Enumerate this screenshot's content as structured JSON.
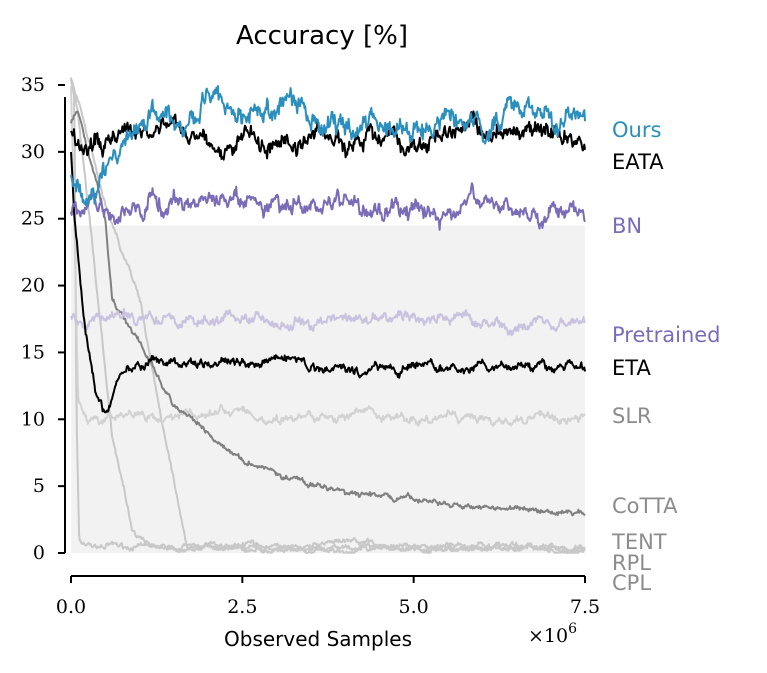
{
  "chart_data": {
    "type": "line",
    "title": "Accuracy [%]",
    "xlabel": "Observed Samples",
    "ylabel": "",
    "x_multiplier": "×10",
    "x_multiplier_exp": "6",
    "xlim": [
      0,
      7.5
    ],
    "ylim": [
      0,
      35
    ],
    "x_ticks": [
      0.0,
      2.5,
      5.0,
      7.5
    ],
    "x_tick_labels": [
      "0.0",
      "2.5",
      "5.0",
      "7.5"
    ],
    "y_ticks": [
      0,
      5,
      10,
      15,
      20,
      25,
      30,
      35
    ],
    "y_tick_labels": [
      "0",
      "5",
      "10",
      "15",
      "20",
      "25",
      "30",
      "35"
    ],
    "grid": false,
    "legend_placement": "right, labels next to line ends",
    "band": {
      "from": 0,
      "to": 24.5,
      "color": "#f2f2f2"
    },
    "series": [
      {
        "name": "CPL",
        "color": "#c8c8c8",
        "x": [
          0,
          0.05,
          0.08,
          0.12,
          0.5,
          7.5
        ],
        "y": [
          35.5,
          34,
          10,
          0.8,
          0.4,
          0.3
        ],
        "noise": 0.25
      },
      {
        "name": "RPL",
        "color": "#c8c8c8",
        "x": [
          0,
          0.1,
          0.3,
          0.6,
          0.9,
          1.1,
          7.5
        ],
        "y": [
          35.5,
          33,
          24,
          9,
          1.5,
          0.4,
          0.3
        ],
        "noise": 0.25
      },
      {
        "name": "TENT",
        "color": "#c8c8c8",
        "x": [
          0,
          0.15,
          0.5,
          1.0,
          1.4,
          1.7,
          7.5
        ],
        "y": [
          35.5,
          33,
          26,
          19,
          8,
          0.6,
          0.4
        ],
        "noise": 0.25
      },
      {
        "name": "SLR",
        "color": "#d2d2d2",
        "x": [
          0,
          0.05,
          0.1,
          0.2,
          0.4,
          1.0,
          2.5,
          4.0,
          5.5,
          7.5
        ],
        "y": [
          35,
          25,
          12,
          10.5,
          10,
          10.2,
          10.3,
          10.2,
          10.1,
          10.1
        ],
        "noise": 0.4
      },
      {
        "name": "CoTTA",
        "color": "#808080",
        "x": [
          0,
          0.1,
          0.3,
          0.5,
          0.6,
          1.0,
          1.5,
          2.0,
          2.5,
          3.0,
          4.0,
          5.0,
          6.0,
          7.5
        ],
        "y": [
          32,
          33,
          29,
          25,
          19,
          15.5,
          11,
          9,
          7,
          6,
          4.6,
          3.9,
          3.5,
          3.1
        ],
        "noise": 0.25
      },
      {
        "name": "Pretrained",
        "color": "#c9c3e0",
        "x": [
          0,
          7.5
        ],
        "y": [
          17.5,
          17.5
        ],
        "noise": 0.5
      },
      {
        "name": "ETA",
        "color": "#000000",
        "x": [
          0,
          0.05,
          0.2,
          0.35,
          0.5,
          0.7,
          1.0,
          1.5,
          2.5,
          4.0,
          5.5,
          7.5
        ],
        "y": [
          30,
          25,
          17,
          12,
          10,
          13,
          13.8,
          14.2,
          14.2,
          13.9,
          13.8,
          13.8
        ],
        "noise": 0.4
      },
      {
        "name": "BN",
        "color": "#7b6cb8",
        "x": [
          0,
          7.5
        ],
        "y": [
          26,
          26
        ],
        "noise": 0.8
      },
      {
        "name": "EATA",
        "color": "#000000",
        "x": [
          0,
          0.1,
          0.3,
          0.5,
          0.8,
          1.5,
          3.0,
          5.0,
          7.5
        ],
        "y": [
          32,
          30,
          29.8,
          29.5,
          30.5,
          31,
          31,
          31,
          31
        ],
        "noise": 0.9
      },
      {
        "name": "Ours",
        "color": "#2a8fbd",
        "x": [
          0,
          0.1,
          0.3,
          0.5,
          0.8,
          1.2,
          2.0,
          3.5,
          5.0,
          7.5
        ],
        "y": [
          28,
          27.5,
          27,
          27.5,
          30.5,
          32.5,
          33,
          33,
          32.5,
          33
        ],
        "noise": 1.0
      }
    ],
    "legend": [
      {
        "label": "Ours",
        "color": "#2a8fbd"
      },
      {
        "label": "EATA",
        "color": "#000000"
      },
      {
        "label": "BN",
        "color": "#7b6cb8"
      },
      {
        "label": "Pretrained",
        "color": "#7b6cb8"
      },
      {
        "label": "ETA",
        "color": "#000000"
      },
      {
        "label": "SLR",
        "color": "#8c8c8c"
      },
      {
        "label": "CoTTA",
        "color": "#8c8c8c"
      },
      {
        "label": "TENT",
        "color": "#8c8c8c"
      },
      {
        "label": "RPL",
        "color": "#8c8c8c"
      },
      {
        "label": "CPL",
        "color": "#8c8c8c"
      }
    ]
  }
}
